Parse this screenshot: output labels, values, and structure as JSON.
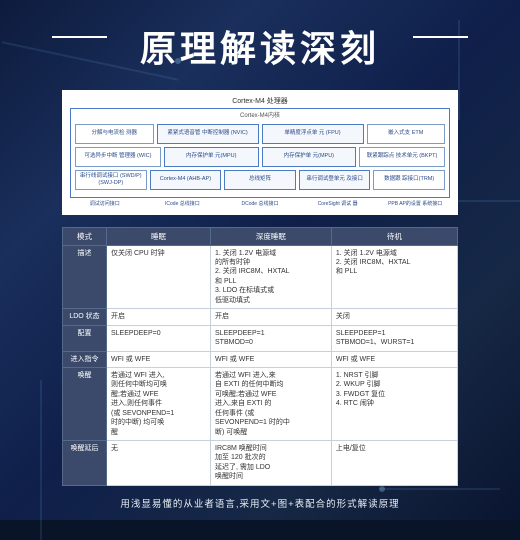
{
  "title": "原理解读深刻",
  "diagram": {
    "outer_title": "Cortex-M4 处理器",
    "inner_title": "Cortex-M4内核",
    "r1": [
      "分解与电流检\n测器",
      "紧紧式语音管\n中断控制器\n(NVIC)",
      "单精度浮点单\n元\n(FPU)",
      "嵌入式支\nETM"
    ],
    "r2": [
      "可选异步中断\n管理器 (WIC)",
      "内存保护单\n元(MPU)",
      "内存保护单\n元(MPU)",
      "联紧跟踪点\n技术单元\n(BKPT)"
    ],
    "r3": [
      "串行线调试接口\n(SWD/P)\n(SWJ-DP)",
      "Cortex-M4\n(AHB-AP)",
      "总线矩阵",
      "串行调试登单元\n及接口",
      "数据跟\n踪接口(TRM)"
    ],
    "bottom": [
      "调试访问接口",
      "ICode 总线接口",
      "DCode 总线接口",
      "CoreSight\n调试 器",
      "PPB AP的设置\n系统接口"
    ]
  },
  "table": {
    "headers": [
      "模式",
      "睡眠",
      "深度睡眠",
      "待机"
    ],
    "rows": [
      [
        "描述",
        "仅关闭 CPU 时钟",
        "1. 关闭 1.2V 电源域\n的所有时钟\n2. 关闭 IRC8M、HXTAL\n和 PLL\n3. LDO 在标填式或\n低驱动填式",
        "1. 关闭 1.2V 电源域\n2. 关闭 IRC8M、HXTAL\n和 PLL"
      ],
      [
        "LDO 状态",
        "开启",
        "开启",
        "关闭"
      ],
      [
        "配置",
        "SLEEPDEEP=0",
        "SLEEPDEEP=1\nSTBMOD=0",
        "SLEEPDEEP=1\nSTBMOD=1、WURST=1"
      ],
      [
        "进入指令",
        "WFI 或 WFE",
        "WFI 或 WFE",
        "WFI 或 WFE"
      ],
      [
        "唤醒",
        "若通过 WFI 进入,\n则任何中断均可唤\n醒;若通过 WFE\n进入,则任何事件\n(或 SEVONPEND=1\n时的中断) 均可唤\n醒",
        "若通过 WFI 进入,来\n自 EXTI 的任何中断均\n可唤醒;若通过 WFE\n进入,来自 EXTI 的\n任何事件 (或\nSEVONPEND=1 时的中\n断) 可唤醒",
        "1. NRST 引脚\n2. WKUP 引脚\n3. FWDGT 复位\n4. RTC 闹钟"
      ],
      [
        "唤醒延后",
        "无",
        "IRC8M 唤醒时间\n加至 120 批次的\n延迟了, 需加 LDO\n唤醒时间",
        "上电/复位"
      ]
    ]
  },
  "caption": "用浅显易懂的从业者语言,采用文+图+表配合的形式解读原理"
}
